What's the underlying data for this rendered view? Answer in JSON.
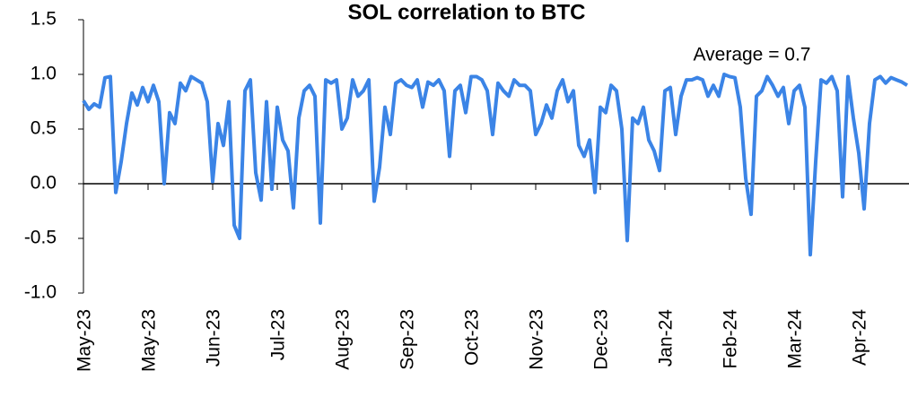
{
  "chart_data": {
    "type": "line",
    "title": "SOL correlation to BTC",
    "annotation": "Average = 0.7",
    "categories": [
      "May-23",
      null,
      null,
      null,
      null,
      null,
      null,
      null,
      null,
      null,
      null,
      null,
      "May-23",
      null,
      null,
      null,
      null,
      null,
      null,
      null,
      null,
      null,
      null,
      null,
      "Jun-23",
      null,
      null,
      null,
      null,
      null,
      null,
      null,
      null,
      null,
      null,
      null,
      "Jul-23",
      null,
      null,
      null,
      null,
      null,
      null,
      null,
      null,
      null,
      null,
      null,
      "Aug-23",
      null,
      null,
      null,
      null,
      null,
      null,
      null,
      null,
      null,
      null,
      null,
      "Sep-23",
      null,
      null,
      null,
      null,
      null,
      null,
      null,
      null,
      null,
      null,
      null,
      "Oct-23",
      null,
      null,
      null,
      null,
      null,
      null,
      null,
      null,
      null,
      null,
      null,
      "Nov-23",
      null,
      null,
      null,
      null,
      null,
      null,
      null,
      null,
      null,
      null,
      null,
      "Dec-23",
      null,
      null,
      null,
      null,
      null,
      null,
      null,
      null,
      null,
      null,
      null,
      "Jan-24",
      null,
      null,
      null,
      null,
      null,
      null,
      null,
      null,
      null,
      null,
      null,
      "Feb-24",
      null,
      null,
      null,
      null,
      null,
      null,
      null,
      null,
      null,
      null,
      null,
      "Mar-24",
      null,
      null,
      null,
      null,
      null,
      null,
      null,
      null,
      null,
      null,
      null,
      "Apr-24",
      null,
      null,
      null,
      null,
      null,
      null,
      null,
      null,
      null
    ],
    "series": [
      {
        "color": "#3b84e6",
        "values": [
          0.76,
          0.68,
          0.73,
          0.7,
          0.97,
          0.98,
          -0.08,
          0.2,
          0.55,
          0.83,
          0.72,
          0.88,
          0.75,
          0.9,
          0.75,
          0.0,
          0.65,
          0.55,
          0.92,
          0.85,
          0.98,
          0.95,
          0.92,
          0.75,
          0.02,
          0.55,
          0.35,
          0.75,
          -0.38,
          -0.5,
          0.85,
          0.95,
          0.1,
          -0.15,
          0.75,
          -0.05,
          0.7,
          0.4,
          0.3,
          -0.22,
          0.6,
          0.85,
          0.9,
          0.8,
          -0.36,
          0.95,
          0.92,
          0.95,
          0.5,
          0.6,
          0.95,
          0.8,
          0.85,
          0.95,
          -0.16,
          0.15,
          0.7,
          0.45,
          0.92,
          0.95,
          0.9,
          0.88,
          0.95,
          0.7,
          0.93,
          0.9,
          0.95,
          0.85,
          0.25,
          0.85,
          0.9,
          0.65,
          0.98,
          0.98,
          0.95,
          0.85,
          0.45,
          0.92,
          0.85,
          0.8,
          0.95,
          0.9,
          0.9,
          0.85,
          0.45,
          0.55,
          0.72,
          0.6,
          0.85,
          0.95,
          0.75,
          0.85,
          0.35,
          0.25,
          0.4,
          -0.08,
          0.7,
          0.65,
          0.9,
          0.85,
          0.5,
          -0.52,
          0.6,
          0.55,
          0.7,
          0.4,
          0.3,
          0.12,
          0.85,
          0.88,
          0.45,
          0.8,
          0.95,
          0.95,
          0.97,
          0.95,
          0.8,
          0.9,
          0.8,
          1.0,
          0.98,
          0.97,
          0.7,
          0.05,
          -0.28,
          0.8,
          0.85,
          0.98,
          0.9,
          0.8,
          0.88,
          0.55,
          0.85,
          0.9,
          0.7,
          -0.65,
          0.2,
          0.95,
          0.92,
          0.98,
          0.85,
          -0.12,
          0.98,
          0.6,
          0.28,
          -0.23,
          0.55,
          0.95,
          0.98,
          0.92,
          0.97,
          0.95,
          0.93,
          0.9
        ]
      }
    ],
    "ylim": [
      -1,
      1.5
    ],
    "yticks": [
      {
        "value": -1,
        "label": "-1.0"
      },
      -0.5,
      {
        "value": 0,
        "label": "0.0"
      },
      0.5,
      {
        "value": 1,
        "label": "1.0"
      },
      1.5
    ]
  }
}
